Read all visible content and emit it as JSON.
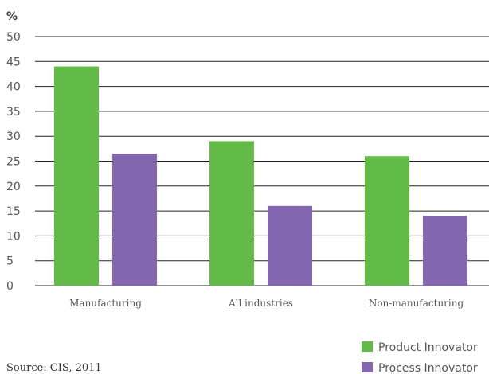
{
  "chart_data": {
    "type": "bar",
    "unit_label": "%",
    "categories": [
      "Manufacturing",
      "All industries",
      "Non-manufacturing"
    ],
    "series": [
      {
        "name": "Product Innovator",
        "color": "#62bb46",
        "values": [
          44,
          29,
          26
        ]
      },
      {
        "name": "Process Innovator",
        "color": "#8368b1",
        "values": [
          26.5,
          16,
          14
        ]
      }
    ],
    "ylim": [
      0,
      50
    ],
    "yticks": [
      0,
      5,
      10,
      15,
      20,
      25,
      30,
      35,
      40,
      45,
      50
    ],
    "grid": true,
    "legend_position": "bottom-right",
    "source": "Source: CIS, 2011"
  }
}
